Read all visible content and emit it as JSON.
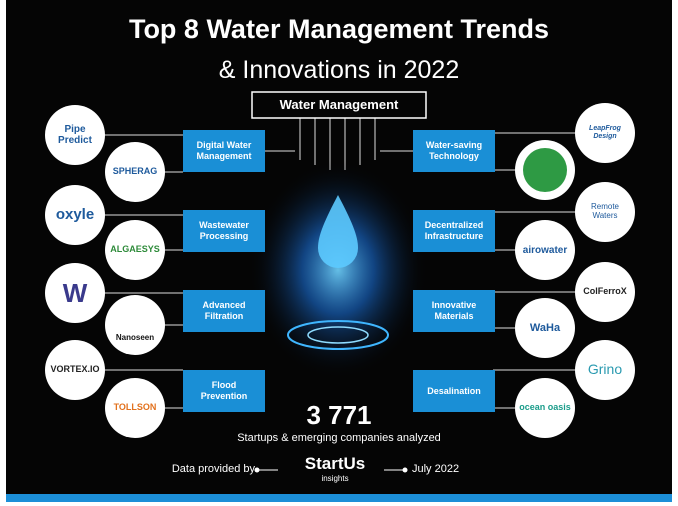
{
  "header": {
    "title": "Top 8 Water Management Trends",
    "subtitle": "& Innovations in 2022"
  },
  "center": "Water Management",
  "trends": [
    {
      "label": "Digital Water Management",
      "startups": [
        "Pipe Predict",
        "SPHERAG"
      ]
    },
    {
      "label": "Wastewater Processing",
      "startups": [
        "oxyle",
        "ALGAESYS"
      ]
    },
    {
      "label": "Advanced Filtration",
      "startups": [
        "W",
        "Nanoseen"
      ]
    },
    {
      "label": "Flood Prevention",
      "startups": [
        "VORTEX.IO",
        "TOLLSON"
      ]
    },
    {
      "label": "Water-saving Technology",
      "startups": [
        "LeapFrog Design"
      ]
    },
    {
      "label": "Decentralized Infrastructure",
      "startups": [
        "Remote Waters",
        "airowater"
      ]
    },
    {
      "label": "Innovative Materials",
      "startups": [
        "ColFerroX",
        "WaHa"
      ]
    },
    {
      "label": "Desalination",
      "startups": [
        "Grino",
        "ocean oasis"
      ]
    }
  ],
  "stats": {
    "number": "3 771",
    "caption": "Startups & emerging companies analyzed"
  },
  "footer": {
    "provided": "Data provided by",
    "brand": "StartUs",
    "brand_sub": "insights",
    "date": "July 2022"
  }
}
